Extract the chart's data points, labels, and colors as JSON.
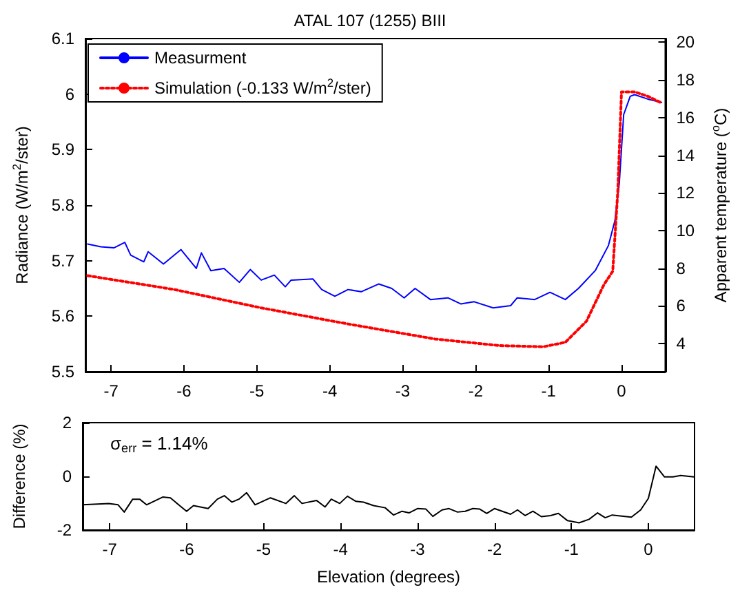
{
  "chart_data": [
    {
      "type": "line",
      "title": "ATAL 107 (1255) BIII",
      "ylabel": "Radiance (W/m$^{2}$/ster)",
      "y2label": "Apparent temperature ($^{o}$C)",
      "xlim": [
        -7.35,
        0.6
      ],
      "xticks": [
        -7,
        -6,
        -5,
        -4,
        -3,
        -2,
        -1,
        0
      ],
      "ylim": [
        5.5,
        6.1
      ],
      "yticks": [
        5.5,
        5.6,
        5.7,
        5.8,
        5.9,
        6,
        6.1
      ],
      "y2lim": [
        2.5,
        20.2
      ],
      "y2ticks": [
        4,
        6,
        8,
        10,
        12,
        14,
        16,
        18,
        20
      ],
      "legend": "top left",
      "marker": "none",
      "grid": false,
      "series": [
        {
          "name": "Measurment",
          "color": "#0000ff",
          "line_style": "solid",
          "x": [
            -7.32,
            -7.14,
            -6.96,
            -6.81,
            -6.73,
            -6.55,
            -6.49,
            -6.28,
            -6.04,
            -5.83,
            -5.76,
            -5.63,
            -5.45,
            -5.24,
            -5.09,
            -4.94,
            -4.76,
            -4.61,
            -4.53,
            -4.23,
            -4.11,
            -3.93,
            -3.75,
            -3.57,
            -3.33,
            -3.15,
            -2.98,
            -2.83,
            -2.62,
            -2.38,
            -2.2,
            -2.02,
            -1.76,
            -1.52,
            -1.43,
            -1.19,
            -0.98,
            -0.77,
            -0.59,
            -0.36,
            -0.18,
            -0.09,
            -0.03,
            0.03,
            0.12,
            0.18,
            0.36,
            0.48,
            0.55
          ],
          "values": [
            5.73,
            5.725,
            5.723,
            5.733,
            5.71,
            5.698,
            5.716,
            5.694,
            5.72,
            5.686,
            5.714,
            5.682,
            5.686,
            5.661,
            5.684,
            5.665,
            5.674,
            5.653,
            5.665,
            5.667,
            5.648,
            5.636,
            5.648,
            5.644,
            5.658,
            5.65,
            5.633,
            5.65,
            5.63,
            5.633,
            5.622,
            5.626,
            5.615,
            5.619,
            5.633,
            5.63,
            5.643,
            5.63,
            5.65,
            5.682,
            5.727,
            5.772,
            5.839,
            5.963,
            5.996,
            5.999,
            5.991,
            5.987,
            5.985
          ]
        },
        {
          "name": "Simulation (-0.133 W/m$^{2}$/ster)",
          "color": "#ff0000",
          "line_style": "dotted",
          "x": [
            -7.32,
            -6.13,
            -4.94,
            -3.75,
            -2.56,
            -1.67,
            -1.07,
            -0.77,
            -0.48,
            -0.24,
            -0.12,
            -0.05,
            0,
            0.03,
            0.18,
            0.36,
            0.55
          ],
          "values": [
            5.673,
            5.648,
            5.615,
            5.586,
            5.559,
            5.547,
            5.545,
            5.553,
            5.591,
            5.657,
            5.681,
            5.826,
            6.004,
            6.004,
            6.004,
            5.996,
            5.984
          ]
        }
      ]
    },
    {
      "type": "line",
      "xlabel": "Elevation (degrees)",
      "ylabel": "Difference (%)",
      "xlim": [
        -7.35,
        0.6
      ],
      "xticks": [
        -7,
        -6,
        -5,
        -4,
        -3,
        -2,
        -1,
        0
      ],
      "ylim": [
        -2,
        2
      ],
      "yticks": [
        -2,
        0,
        2
      ],
      "marker": "none",
      "grid": false,
      "annotations": [
        "σ$_{err}$ = 1.14%"
      ],
      "series": [
        {
          "color": "#000000",
          "x": [
            -7.35,
            -7.01,
            -6.89,
            -6.81,
            -6.7,
            -6.61,
            -6.52,
            -6.31,
            -6.21,
            -6.09,
            -6,
            -5.91,
            -5.72,
            -5.6,
            -5.51,
            -5.41,
            -5.32,
            -5.22,
            -5.11,
            -4.91,
            -4.71,
            -4.6,
            -4.5,
            -4.31,
            -4.2,
            -4.12,
            -4.01,
            -3.91,
            -3.8,
            -3.7,
            -3.57,
            -3.42,
            -3.31,
            -3.2,
            -3.11,
            -3,
            -2.89,
            -2.8,
            -2.68,
            -2.59,
            -2.48,
            -2.38,
            -2.28,
            -2.19,
            -2.1,
            -2,
            -1.79,
            -1.7,
            -1.6,
            -1.5,
            -1.39,
            -1.27,
            -1.17,
            -1.05,
            -0.9,
            -0.77,
            -0.66,
            -0.56,
            -0.47,
            -0.22,
            -0.1,
            0,
            0.1,
            0.21,
            0.32,
            0.42,
            0.59
          ],
          "values": [
            -1.06,
            -1.01,
            -1.06,
            -1.33,
            -0.85,
            -0.85,
            -1.06,
            -0.77,
            -0.8,
            -1.09,
            -1.3,
            -1.09,
            -1.2,
            -0.85,
            -0.72,
            -0.96,
            -0.85,
            -0.61,
            -1.06,
            -0.8,
            -1.01,
            -0.72,
            -1.01,
            -0.9,
            -1.14,
            -0.85,
            -1.01,
            -0.74,
            -0.93,
            -0.96,
            -1.09,
            -1.17,
            -1.44,
            -1.3,
            -1.36,
            -1.2,
            -1.22,
            -1.49,
            -1.25,
            -1.2,
            -1.33,
            -1.3,
            -1.2,
            -1.22,
            -1.38,
            -1.2,
            -1.41,
            -1.25,
            -1.46,
            -1.3,
            -1.5,
            -1.46,
            -1.38,
            -1.65,
            -1.73,
            -1.6,
            -1.36,
            -1.54,
            -1.44,
            -1.52,
            -1.25,
            -0.82,
            0.38,
            -0.02,
            -0.02,
            0.03,
            -0.02
          ]
        }
      ]
    }
  ]
}
